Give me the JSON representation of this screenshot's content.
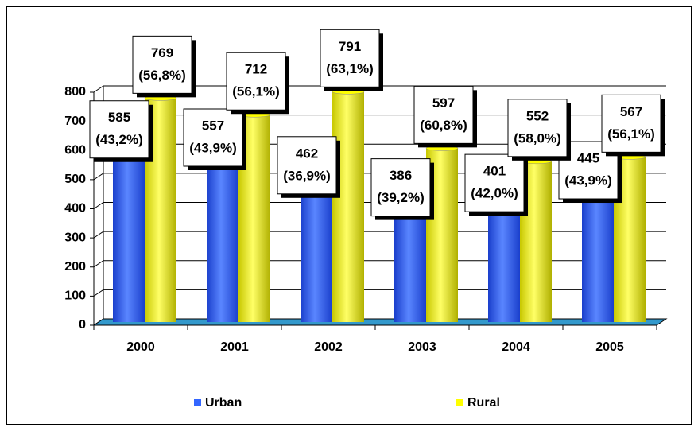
{
  "chart_data": {
    "type": "bar",
    "categories": [
      "2000",
      "2001",
      "2002",
      "2003",
      "2004",
      "2005"
    ],
    "series": [
      {
        "name": "Urban",
        "color": "#3366ff",
        "values": [
          585,
          557,
          462,
          386,
          401,
          445
        ],
        "share_labels": [
          "(43,2%)",
          "(43,9%)",
          "(36,9%)",
          "(39,2%)",
          "(42,0%)",
          "(43,9%)"
        ]
      },
      {
        "name": "Rural",
        "color": "#ffff00",
        "values": [
          769,
          712,
          791,
          597,
          552,
          567
        ],
        "share_labels": [
          "(56,8%)",
          "(56,1%)",
          "(63,1%)",
          "(60,8%)",
          "(58,0%)",
          "(56,1%)"
        ]
      }
    ],
    "ylim": [
      0,
      800
    ],
    "yticks": [
      0,
      100,
      200,
      300,
      400,
      500,
      600,
      700,
      800
    ],
    "grid": true
  }
}
